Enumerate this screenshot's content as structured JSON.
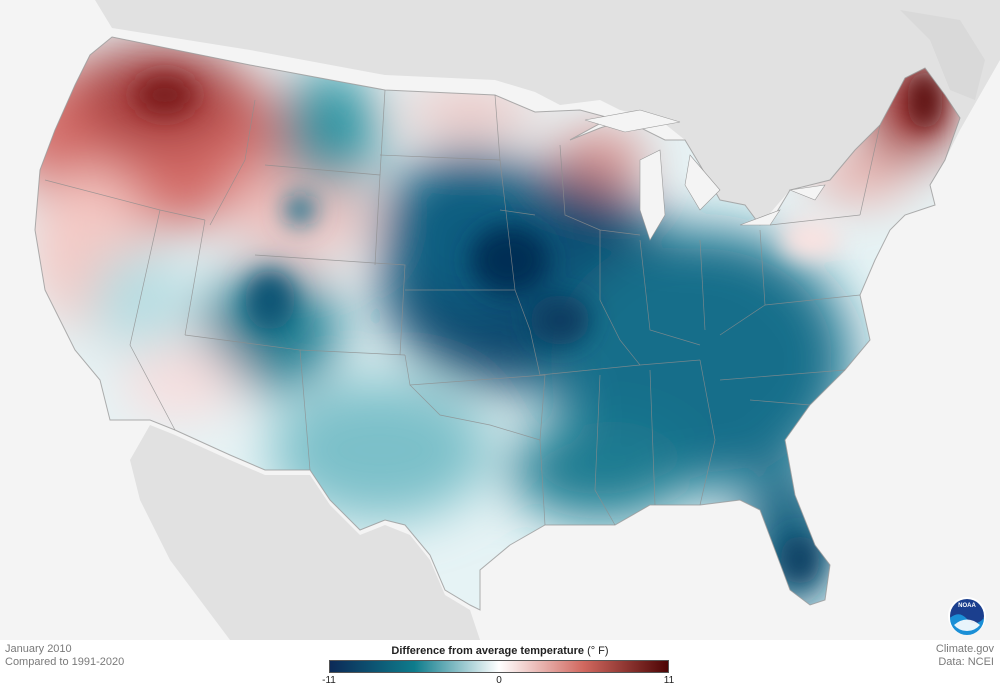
{
  "caption": {
    "period": "January 2010",
    "baseline": "Compared to 1991-2020"
  },
  "credit": {
    "site": "Climate.gov",
    "data_source": "Data: NCEI"
  },
  "legend": {
    "title": "Difference from average temperature",
    "unit": "(° F)",
    "min_label": "-11",
    "mid_label": "0",
    "max_label": "11",
    "scale": {
      "min": -11,
      "max": 11,
      "colors": [
        "#0c2a57",
        "#0e7c8c",
        "#ffffff",
        "#d1685f",
        "#4d0505"
      ]
    }
  },
  "logo": {
    "text": "NOAA",
    "icon": "noaa-logo-icon"
  },
  "anomaly_regions": {
    "pacific_northwest": 6,
    "northern_rockies_east": -5,
    "upper_michigan": 5,
    "maine": 10,
    "central_plains": -10,
    "southeast": -7,
    "florida": -9,
    "four_corners": -7,
    "texas": -3,
    "california": 1,
    "nevada": -2
  },
  "colors": {
    "background": "#f4f4f4",
    "land_other": "#e1e1e1",
    "state_border": "#8d8d8d",
    "noaa_blue": "#0a5fa3"
  }
}
